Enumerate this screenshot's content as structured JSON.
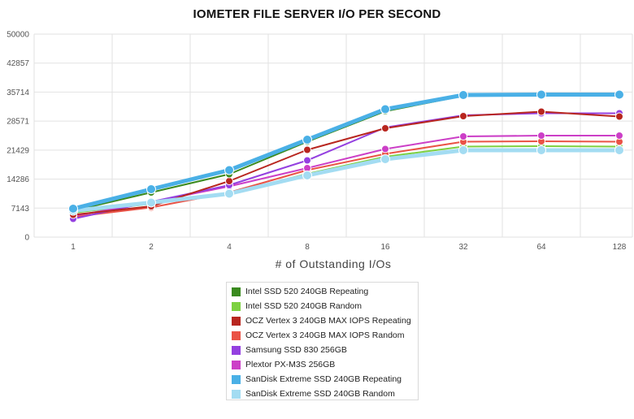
{
  "chart_data": {
    "type": "line",
    "title": "IOMETER FILE SERVER I/O PER SECOND",
    "xlabel": "# of Outstanding I/Os",
    "ylabel": "",
    "categories": [
      "1",
      "2",
      "4",
      "8",
      "16",
      "32",
      "64",
      "128"
    ],
    "yticks": [
      "0",
      "7143",
      "14286",
      "21429",
      "28571",
      "35714",
      "42857",
      "50000"
    ],
    "ylim": [
      0,
      50000
    ],
    "grid": true,
    "legend_position": "bottom",
    "series": [
      {
        "name": "Intel SSD 520 240GB Repeating",
        "color": "#3a8a1e",
        "values": [
          6500,
          11000,
          15500,
          23500,
          31000,
          34800,
          34900,
          34800
        ]
      },
      {
        "name": "Intel SSD 520 240GB Random",
        "color": "#7dd141",
        "values": [
          6000,
          8200,
          10700,
          15600,
          19800,
          22300,
          22400,
          22300
        ]
      },
      {
        "name": "OCZ Vertex 3 240GB MAX IOPS Repeating",
        "color": "#b8261f",
        "values": [
          5500,
          7600,
          13800,
          21500,
          26800,
          29800,
          30900,
          29700
        ]
      },
      {
        "name": "OCZ Vertex 3 240GB MAX IOPS Random",
        "color": "#ea5346",
        "values": [
          5000,
          7300,
          11000,
          16500,
          20500,
          23500,
          23600,
          23500
        ]
      },
      {
        "name": "Samsung SSD 830 256GB",
        "color": "#9440e0",
        "values": [
          4500,
          8700,
          12800,
          18900,
          27000,
          30000,
          30500,
          30500
        ]
      },
      {
        "name": "Plextor PX-M3S 256GB",
        "color": "#cc3fc7",
        "values": [
          5200,
          8600,
          12500,
          17000,
          21700,
          24800,
          25000,
          25000
        ]
      },
      {
        "name": "SanDisk Extreme SSD 240GB Repeating",
        "color": "#4ab0e6",
        "values": [
          7000,
          11800,
          16500,
          24000,
          31500,
          35000,
          35100,
          35100
        ]
      },
      {
        "name": "SanDisk Extreme SSD 240GB Random",
        "color": "#a3dcf2",
        "values": [
          6500,
          8500,
          10700,
          15200,
          19200,
          21400,
          21400,
          21400
        ]
      }
    ]
  }
}
